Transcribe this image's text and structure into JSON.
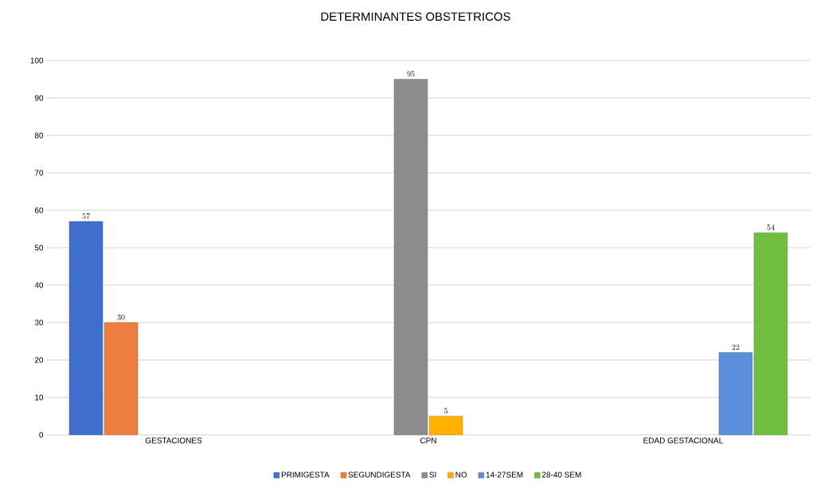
{
  "chart_data": {
    "type": "bar",
    "title": "DETERMINANTES OBSTETRICOS",
    "categories": [
      "GESTACIONES",
      "CPN",
      "EDAD GESTACIONAL"
    ],
    "series": [
      {
        "name": "PRIMIGESTA",
        "color": "#3f6fce",
        "values": [
          57,
          null,
          null
        ]
      },
      {
        "name": "SEGUNDIGESTA",
        "color": "#ed7d41",
        "values": [
          30,
          null,
          null
        ]
      },
      {
        "name": "SI",
        "color": "#8c8c8c",
        "values": [
          null,
          95,
          null
        ]
      },
      {
        "name": "NO",
        "color": "#ffb000",
        "values": [
          null,
          5,
          null
        ]
      },
      {
        "name": "14-27SEM",
        "color": "#5b8fdc",
        "values": [
          null,
          null,
          22
        ]
      },
      {
        "name": "28-40 SEM",
        "color": "#6fbe3f",
        "values": [
          null,
          null,
          54
        ]
      }
    ],
    "ylim": [
      0,
      100
    ],
    "yticks": [
      0,
      10,
      20,
      30,
      40,
      50,
      60,
      70,
      80,
      90,
      100
    ],
    "grid": "y",
    "data_labels": true,
    "legend": "bottom"
  }
}
